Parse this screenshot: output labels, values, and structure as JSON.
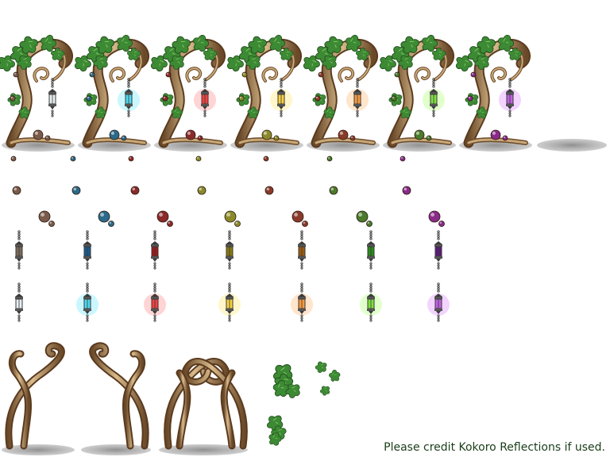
{
  "credit_text": "Please credit Kokoro Reflections if used.",
  "palette": {
    "trunk_light": "#c9a878",
    "trunk_dark": "#6b4a2a",
    "leaf_light": "#5fae4a",
    "leaf_dark": "#1f5a22",
    "shadow": "#9a9a9a",
    "metal": "#3a3a3a"
  },
  "variants": [
    {
      "name": "white",
      "lit": "#e8eef2",
      "dark": "#7a6a5a",
      "glow": "#ffffff",
      "orb": "#7a5a4a"
    },
    {
      "name": "cyan",
      "lit": "#4fd8f0",
      "dark": "#1a5a8a",
      "glow": "#9ff0ff",
      "orb": "#2a6a8a"
    },
    {
      "name": "red",
      "lit": "#f04040",
      "dark": "#9a1a1a",
      "glow": "#ffb0b0",
      "orb": "#8a2a2a"
    },
    {
      "name": "yellow",
      "lit": "#f8d040",
      "dark": "#8a7a10",
      "glow": "#fff0a0",
      "orb": "#8a8a2a"
    },
    {
      "name": "orange",
      "lit": "#f89a40",
      "dark": "#9a5a10",
      "glow": "#ffd0a0",
      "orb": "#8a3a2a"
    },
    {
      "name": "green",
      "lit": "#80e040",
      "dark": "#2a8a1a",
      "glow": "#c8ffa0",
      "orb": "#4a7a2a"
    },
    {
      "name": "purple",
      "lit": "#c060e0",
      "dark": "#5a1a7a",
      "glow": "#e8b0ff",
      "orb": "#8a2a8a"
    }
  ],
  "icons": {
    "tree": "vine-tree-icon",
    "lantern": "lantern-icon",
    "orb": "orb-icon",
    "leaf": "leaf-cluster-icon",
    "shadow": "ground-shadow-icon",
    "arch": "vine-arch-icon"
  }
}
